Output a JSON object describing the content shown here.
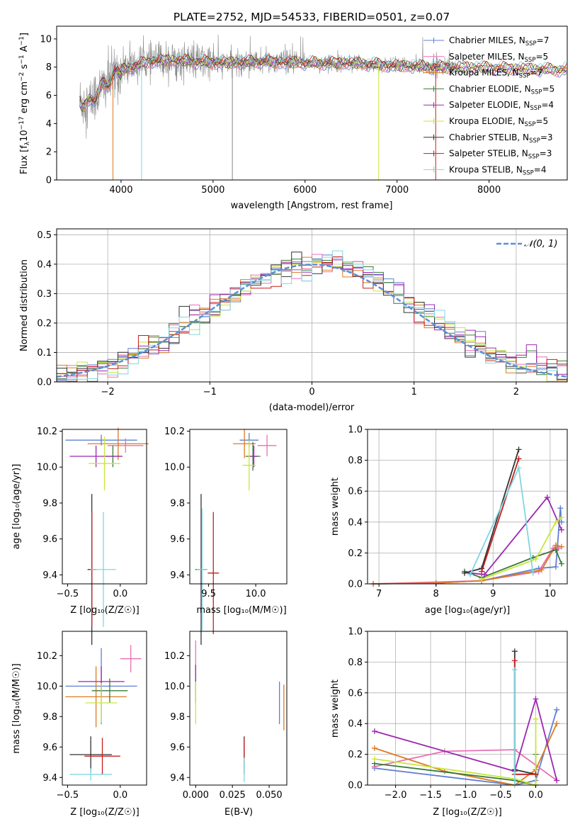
{
  "figure": {
    "title": "PLATE=2752, MJD=54533, FIBERID=0501, z=0.07"
  },
  "models": [
    {
      "label": "Chabrier MILES, N",
      "sub": "SSP",
      "suffix": "=7",
      "color": "#5f7fd3",
      "age": 10.15,
      "age_err": 0.04,
      "mass": 10.0,
      "mass_err": 0.25
    },
    {
      "label": "Salpeter MILES, N",
      "sub": "SSP",
      "suffix": "=5",
      "color": "#e86fb6",
      "age": 10.12,
      "age_err": 0.05,
      "mass": 10.18,
      "mass_err": 0.08
    },
    {
      "label": "Kroupa MILES, N",
      "sub": "SSP",
      "suffix": "=7",
      "color": "#dd7a22",
      "age": 10.13,
      "age_err": 0.06,
      "mass": 9.93,
      "mass_err": 0.2
    },
    {
      "label": "Chabrier ELODIE, N",
      "sub": "SSP",
      "suffix": "=5",
      "color": "#3a7a3a",
      "age": 10.06,
      "age_err": 0.1,
      "mass": 9.96,
      "mass_err": 0.12
    },
    {
      "label": "Salpeter ELODIE, N",
      "sub": "SSP",
      "suffix": "=4",
      "color": "#9c27b0",
      "age": 10.06,
      "age_err": 0.05,
      "mass": 10.03,
      "mass_err": 0.1
    },
    {
      "label": "Kroupa ELODIE, N",
      "sub": "SSP",
      "suffix": "=5",
      "color": "#c8e63b",
      "age": 10.0,
      "age_err": 0.12,
      "mass": 9.89,
      "mass_err": 0.14
    },
    {
      "label": "Chabrier STELIB, N",
      "sub": "SSP",
      "suffix": "=3",
      "color": "#333333",
      "age": 9.43,
      "age_err": 0.4,
      "mass": 9.48,
      "mass_err": 0.07
    },
    {
      "label": "Salpeter STELIB, N",
      "sub": "SSP",
      "suffix": "=3",
      "color": "#c41e1e",
      "age": 9.43,
      "age_err": 0.3,
      "mass": 9.54,
      "mass_err": 0.12
    },
    {
      "label": "Kroupa STELIB, N",
      "sub": "SSP",
      "suffix": "=4",
      "color": "#7fd6e0",
      "age": 9.43,
      "age_err": 0.3,
      "mass": 9.42,
      "mass_err": 0.06
    }
  ],
  "chart_data": [
    {
      "type": "line",
      "name": "spectrum",
      "xlabel": "wavelength [Angstrom, rest frame]",
      "ylabel_parts": [
        "Flux [f",
        "λ",
        "10",
        "−17",
        " erg cm",
        "−2",
        " s",
        "−1",
        " A",
        "−1",
        "]"
      ],
      "xlim": [
        3300,
        8850
      ],
      "ylim": [
        0,
        10.9
      ],
      "xticks": [
        4000,
        5000,
        6000,
        7000,
        8000
      ],
      "yticks": [
        0,
        2,
        4,
        6,
        8,
        10
      ],
      "grid": false,
      "legend_position": "top-right",
      "continuum": {
        "x": [
          3550,
          3650,
          3800,
          3950,
          4100,
          4300,
          4500,
          4800,
          5100,
          5500,
          6000,
          6500,
          7000,
          7500,
          8000,
          8500,
          8850
        ],
        "y": [
          5.6,
          5.4,
          6.6,
          7.6,
          8.0,
          8.4,
          8.5,
          8.4,
          8.3,
          8.4,
          8.3,
          8.3,
          8.1,
          8.0,
          7.95,
          7.85,
          7.8
        ]
      },
      "drop_lines": [
        3912,
        4223,
        5210,
        6800,
        7420
      ]
    },
    {
      "type": "step",
      "name": "residuals",
      "xlabel": "(data-model)/error",
      "ylabel": "Normed distribution",
      "xlim": [
        -2.5,
        2.5
      ],
      "ylim": [
        0,
        0.52
      ],
      "xticks": [
        -2,
        -1,
        0,
        1,
        2
      ],
      "yticks": [
        0.0,
        0.1,
        0.2,
        0.3,
        0.4,
        0.5
      ],
      "grid": true,
      "legend_position": "top-right",
      "legend": "𝒩(0, 1)",
      "bin_width": 0.1
    },
    {
      "type": "scatter",
      "name": "age-vs-Z",
      "xlabel": "Z [log₁₀(Z/Z☉)]",
      "ylabel": "age  [log₁₀(age/yr)]",
      "xlim": [
        -0.55,
        0.25
      ],
      "ylim": [
        9.35,
        10.21
      ],
      "xticks": [
        -0.5,
        0.0
      ],
      "yticks": [
        9.4,
        9.6,
        9.8,
        10.0,
        10.2
      ],
      "points": [
        {
          "x": -0.18,
          "xerr": 0.34,
          "y": 10.15,
          "yerr": 0.03
        },
        {
          "x": 0.05,
          "xerr": 0.17,
          "y": 10.12,
          "yerr": 0.04
        },
        {
          "x": -0.02,
          "xerr": 0.29,
          "y": 10.13,
          "yerr": 0.09
        },
        {
          "x": -0.07,
          "xerr": 0.09,
          "y": 10.06,
          "yerr": 0.06
        },
        {
          "x": -0.23,
          "xerr": 0.25,
          "y": 10.06,
          "yerr": 0.06
        },
        {
          "x": -0.15,
          "xerr": 0.15,
          "y": 10.02,
          "yerr": 0.15
        },
        {
          "x": -0.27,
          "xerr": 0.04,
          "y": 9.43,
          "yerr": 0.42
        },
        {
          "x": -0.27,
          "xerr": 0.04,
          "y": 9.43,
          "yerr": 0.32
        },
        {
          "x": -0.16,
          "xerr": 0.12,
          "y": 9.43,
          "yerr": 0.32
        }
      ]
    },
    {
      "type": "scatter",
      "name": "age-vs-mass",
      "xlabel": "mass [log₁₀(M/M☉)]",
      "xlim": [
        9.3,
        10.33
      ],
      "ylim": [
        9.35,
        10.21
      ],
      "xticks": [
        9.5,
        10.0
      ],
      "yticks": [
        9.4,
        9.6,
        9.8,
        10.0,
        10.2
      ],
      "points": [
        {
          "x": 9.93,
          "xerr": 0.1,
          "y": 10.15,
          "yerr": 0.04
        },
        {
          "x": 10.12,
          "xerr": 0.1,
          "y": 10.12,
          "yerr": 0.06
        },
        {
          "x": 9.88,
          "xerr": 0.12,
          "y": 10.13,
          "yerr": 0.08
        },
        {
          "x": 9.97,
          "xerr": 0.08,
          "y": 10.06,
          "yerr": 0.08
        },
        {
          "x": 9.98,
          "xerr": 0.04,
          "y": 10.06,
          "yerr": 0.06
        },
        {
          "x": 9.93,
          "xerr": 0.07,
          "y": 10.01,
          "yerr": 0.14
        },
        {
          "x": 9.42,
          "xerr": 0.06,
          "y": 9.43,
          "yerr": 0.42
        },
        {
          "x": 9.55,
          "xerr": 0.06,
          "y": 9.41,
          "yerr": 0.34
        },
        {
          "x": 9.43,
          "xerr": 0.06,
          "y": 9.43,
          "yerr": 0.34
        }
      ]
    },
    {
      "type": "line",
      "name": "mass-weight-vs-age",
      "xlabel": "age  [log₁₀(age/yr)]",
      "ylabel": "mass weight",
      "xlim": [
        6.8,
        10.3
      ],
      "ylim": [
        0,
        1
      ],
      "xticks": [
        7,
        8,
        9,
        10
      ],
      "yticks": [
        0.0,
        0.2,
        0.4,
        0.6,
        0.8,
        1.0
      ],
      "grid": true,
      "series": [
        {
          "x": [
            6.9,
            8.0,
            8.8,
            9.8,
            10.1,
            10.18,
            10.2
          ],
          "y": [
            0.0,
            0.005,
            0.02,
            0.1,
            0.11,
            0.49,
            0.4
          ]
        },
        {
          "x": [
            6.9,
            8.8,
            9.8,
            10.05,
            10.15
          ],
          "y": [
            0.0,
            0.02,
            0.08,
            0.23,
            0.23
          ]
        },
        {
          "x": [
            6.9,
            8.0,
            8.8,
            9.85,
            10.1,
            10.2
          ],
          "y": [
            0.0,
            0.005,
            0.02,
            0.09,
            0.25,
            0.24
          ]
        },
        {
          "x": [
            8.5,
            8.8,
            9.7,
            10.1,
            10.2
          ],
          "y": [
            0.08,
            0.04,
            0.17,
            0.22,
            0.13
          ]
        },
        {
          "x": [
            8.6,
            8.85,
            9.95,
            10.2
          ],
          "y": [
            0.07,
            0.06,
            0.56,
            0.35
          ]
        },
        {
          "x": [
            8.8,
            9.75,
            10.1,
            10.2
          ],
          "y": [
            0.03,
            0.16,
            0.4,
            0.43
          ]
        },
        {
          "x": [
            8.5,
            8.8,
            9.45
          ],
          "y": [
            0.07,
            0.1,
            0.87
          ]
        },
        {
          "x": [
            8.8,
            9.45
          ],
          "y": [
            0.08,
            0.81
          ]
        },
        {
          "x": [
            8.6,
            9.45,
            9.7
          ],
          "y": [
            0.06,
            0.75,
            0.07
          ]
        }
      ]
    },
    {
      "type": "scatter",
      "name": "mass-vs-Z",
      "xlabel": "Z [log₁₀(Z/Z☉)]",
      "ylabel": "mass [log₁₀(M/M☉)]",
      "xlim": [
        -0.55,
        0.25
      ],
      "ylim": [
        9.35,
        10.36
      ],
      "xticks": [
        -0.5,
        0.0
      ],
      "yticks": [
        9.4,
        9.6,
        9.8,
        10.0,
        10.2
      ],
      "points": [
        {
          "x": -0.18,
          "xerr": 0.34,
          "y": 10.0,
          "yerr": 0.25
        },
        {
          "x": 0.1,
          "xerr": 0.1,
          "y": 10.18,
          "yerr": 0.09
        },
        {
          "x": -0.23,
          "xerr": 0.29,
          "y": 9.93,
          "yerr": 0.2
        },
        {
          "x": -0.1,
          "xerr": 0.17,
          "y": 9.97,
          "yerr": 0.08
        },
        {
          "x": -0.18,
          "xerr": 0.22,
          "y": 10.03,
          "yerr": 0.1
        },
        {
          "x": -0.18,
          "xerr": 0.15,
          "y": 9.89,
          "yerr": 0.13
        },
        {
          "x": -0.28,
          "xerr": 0.2,
          "y": 9.55,
          "yerr": 0.12
        },
        {
          "x": -0.17,
          "xerr": 0.17,
          "y": 9.54,
          "yerr": 0.12
        },
        {
          "x": -0.28,
          "xerr": 0.2,
          "y": 9.42,
          "yerr": 0.04
        }
      ]
    },
    {
      "type": "scatter",
      "name": "mass-vs-EBV",
      "xlabel": "E(B-V)",
      "xlim": [
        -0.004,
        0.062
      ],
      "ylim": [
        9.35,
        10.36
      ],
      "xticks": [
        0.0,
        0.025,
        0.05
      ],
      "yticks": [
        9.4,
        9.6,
        9.8,
        10.0,
        10.2
      ],
      "points": [
        {
          "x": 0.057,
          "y": 9.89,
          "yerr": 0.14
        },
        {
          "x": 0.0,
          "y": 10.18,
          "yerr": 0.12
        },
        {
          "x": 0.06,
          "y": 9.86,
          "yerr": 0.15
        },
        {
          "x": 0.0,
          "y": 9.97,
          "yerr": 0.08
        },
        {
          "x": 0.0,
          "y": 10.05,
          "yerr": 0.09
        },
        {
          "x": 0.0,
          "y": 9.89,
          "yerr": 0.14
        },
        {
          "x": 0.033,
          "y": 9.55,
          "yerr": 0.12
        },
        {
          "x": 0.033,
          "y": 9.54,
          "yerr": 0.12
        },
        {
          "x": 0.033,
          "y": 9.45,
          "yerr": 0.08
        }
      ]
    },
    {
      "type": "line",
      "name": "mass-weight-vs-Z",
      "xlabel": "Z [log₁₀(Z/Z☉)]",
      "ylabel": "mass weight",
      "xlim": [
        -2.4,
        0.45
      ],
      "ylim": [
        0,
        1
      ],
      "xticks": [
        -2.0,
        -1.5,
        -1.0,
        -0.5,
        0.0
      ],
      "yticks": [
        0.0,
        0.2,
        0.4,
        0.6,
        0.8,
        1.0
      ],
      "grid": true,
      "series": [
        {
          "x": [
            -2.3,
            -0.3,
            0.0,
            0.3
          ],
          "y": [
            0.11,
            0.0,
            0.03,
            0.49
          ]
        },
        {
          "x": [
            -2.3,
            -1.3,
            -0.3,
            0.3
          ],
          "y": [
            0.12,
            0.22,
            0.23,
            0.03
          ]
        },
        {
          "x": [
            -2.3,
            -1.3,
            -0.3,
            0.0,
            0.3
          ],
          "y": [
            0.24,
            0.09,
            0.0,
            0.1,
            0.4
          ]
        },
        {
          "x": [
            -2.3,
            -0.3,
            0.0,
            0.0
          ],
          "y": [
            0.14,
            0.03,
            0.0,
            0.2
          ]
        },
        {
          "x": [
            -2.3,
            -0.3,
            0.0,
            0.3
          ],
          "y": [
            0.35,
            0.09,
            0.56,
            0.03
          ]
        },
        {
          "x": [
            -2.3,
            -0.3,
            0.0,
            0.0
          ],
          "y": [
            0.17,
            0.04,
            0.0,
            0.43
          ]
        },
        {
          "x": [
            -0.3,
            -0.3,
            0.0
          ],
          "y": [
            0.87,
            0.1,
            0.07
          ]
        },
        {
          "x": [
            -0.3,
            -0.3,
            0.0
          ],
          "y": [
            0.81,
            0.07,
            0.07
          ]
        },
        {
          "x": [
            -0.3,
            -0.3
          ],
          "y": [
            0.75,
            0.0
          ]
        }
      ]
    }
  ]
}
